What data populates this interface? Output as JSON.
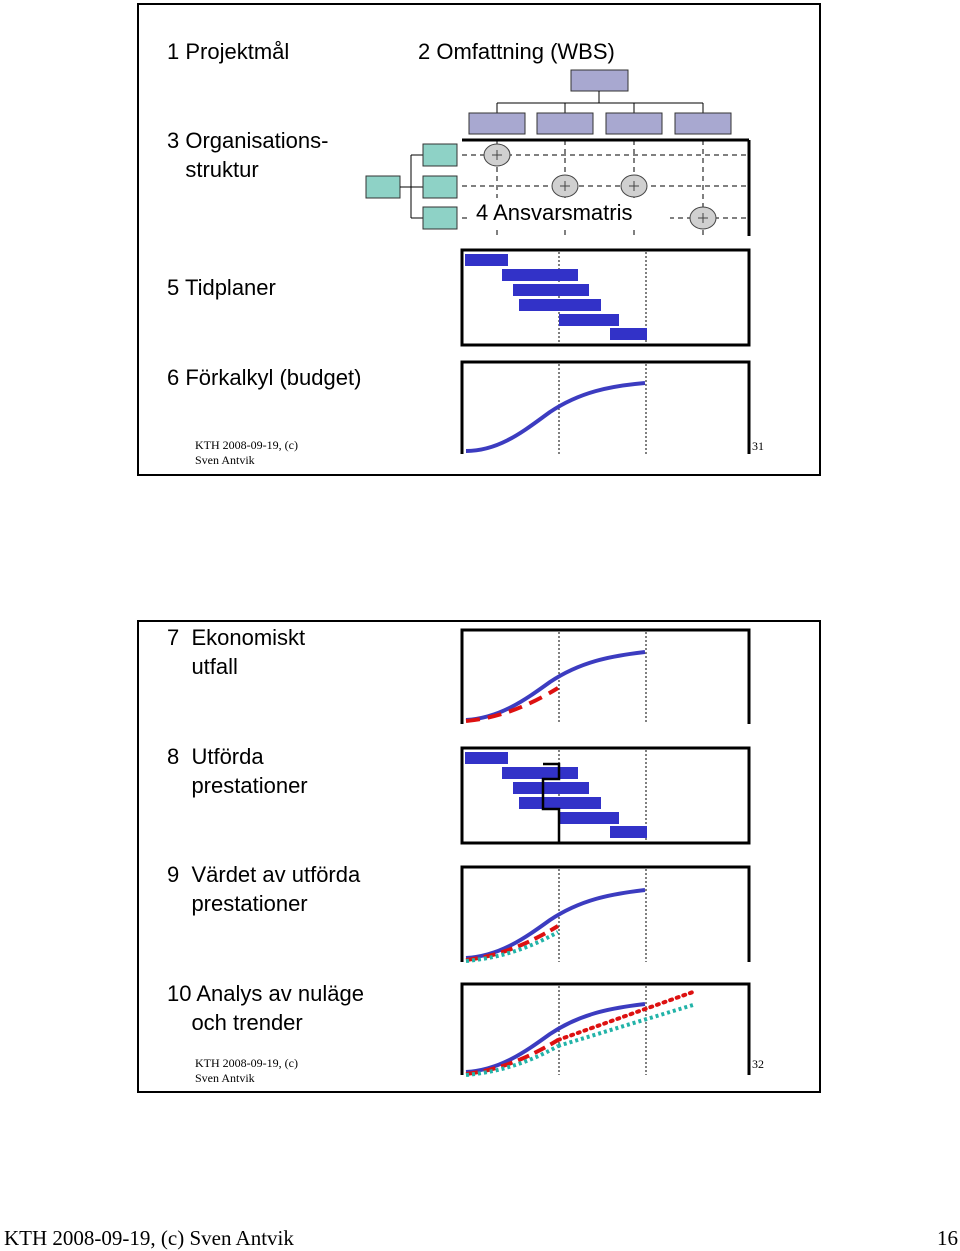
{
  "slide1": {
    "items": [
      "1 Projektmål",
      "2 Omfattning (WBS)",
      "3 Organisations-\n   struktur",
      "4 Ansvarsmatris",
      "5 Tidplaner",
      "6 Förkalkyl (budget)"
    ],
    "footer_left": "KTH 2008-09-19, (c)\nSven Antvik",
    "page_number": "31"
  },
  "slide2": {
    "items": [
      "7  Ekonomiskt\n    utfall",
      "8  Utförda\n    prestationer",
      "9  Värdet av utförda\n    prestationer",
      "10 Analys av nuläge\n    och trender"
    ],
    "footer_left": "KTH 2008-09-19, (c)\nSven Antvik",
    "page_number": "32"
  },
  "footer": {
    "left": "KTH 2008-09-19, (c) Sven Antvik",
    "page_number": "16"
  },
  "colors": {
    "wbs_box": "#a8a8d0",
    "org_box": "#8ed2c6",
    "bar_blue": "#3232c8",
    "curve_blue": "#3c3cc0",
    "actual_red": "#dd1111",
    "earned_teal": "#22b3a8"
  }
}
